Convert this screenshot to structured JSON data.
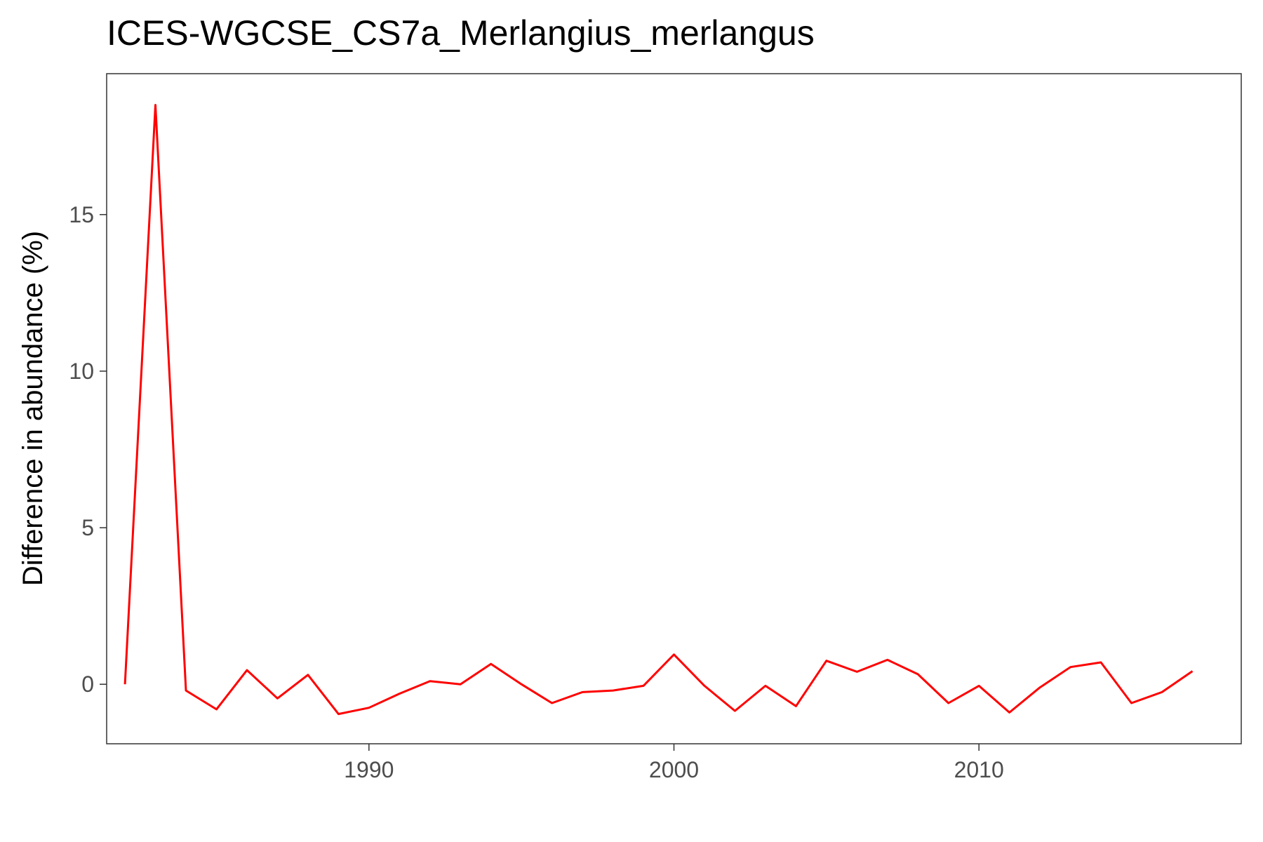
{
  "chart_data": {
    "type": "line",
    "title": "ICES-WGCSE_CS7a_Merlangius_merlangus",
    "xlabel": "",
    "ylabel": "Difference in abundance (%)",
    "xlim": [
      1981.4,
      2018.6
    ],
    "ylim": [
      -1.9,
      19.5
    ],
    "x_ticks": [
      1990,
      2000,
      2010
    ],
    "y_ticks": [
      0,
      5,
      10,
      15
    ],
    "grid": false,
    "line_color": "#ff0000",
    "series": [
      {
        "x": [
          1982,
          1983,
          1984,
          1985,
          1986,
          1987,
          1988,
          1989,
          1990,
          1991,
          1992,
          1993,
          1994,
          1995,
          1996,
          1997,
          1998,
          1999,
          2000,
          2001,
          2002,
          2003,
          2004,
          2005,
          2006,
          2007,
          2008,
          2009,
          2010,
          2011,
          2012,
          2013,
          2014,
          2015,
          2016,
          2017
        ],
        "values": [
          0.0,
          18.5,
          -0.2,
          -0.8,
          0.45,
          -0.45,
          0.3,
          -0.95,
          -0.75,
          -0.3,
          0.1,
          0.0,
          0.65,
          0.0,
          -0.6,
          -0.25,
          -0.2,
          -0.05,
          0.95,
          -0.05,
          -0.85,
          -0.05,
          -0.7,
          0.75,
          0.4,
          0.78,
          0.32,
          -0.6,
          -0.05,
          -0.9,
          -0.1,
          0.55,
          0.7,
          -0.6,
          -0.25,
          0.42
        ]
      }
    ]
  }
}
